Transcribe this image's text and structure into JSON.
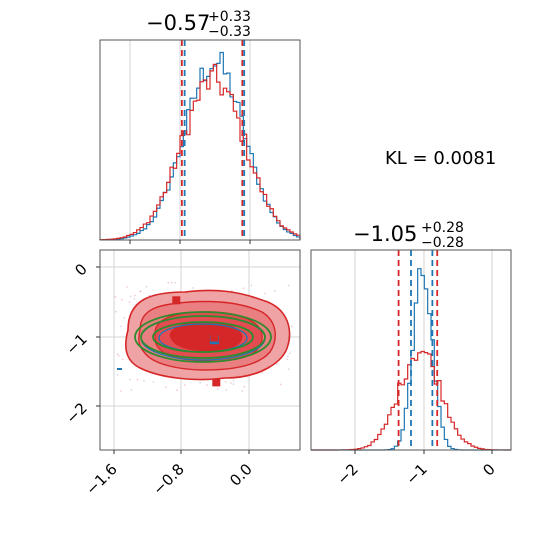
{
  "chart_data": [
    {
      "type": "histogram",
      "panel": "marginal-x",
      "title": {
        "median": "−0.57",
        "plus": "+0.33",
        "minus": "−0.33"
      },
      "xlim": [
        -1.8,
        0.35
      ],
      "colors": {
        "blue": "#1f77b4",
        "red": "#d62728"
      },
      "quantile_lines": {
        "red": [
          -0.92,
          -0.27
        ],
        "blue": [
          -0.89,
          -0.25
        ]
      },
      "series": [
        {
          "color": "blue",
          "shape": "approximately gaussian, peak near -0.57"
        },
        {
          "color": "red",
          "shape": "approximately gaussian, peak near -0.57"
        }
      ]
    },
    {
      "type": "contour",
      "panel": "joint",
      "xlim": [
        -1.8,
        0.35
      ],
      "ylim": [
        -2.6,
        0.3
      ],
      "xticks": [
        "−1.6",
        "−0.8",
        "0.0"
      ],
      "xtick_values": [
        -1.6,
        -0.8,
        0.0
      ],
      "yticks": [
        "0",
        "−1",
        "−2"
      ],
      "ytick_values": [
        0,
        -1,
        -2
      ],
      "markers": [
        {
          "color": "blue",
          "x": -0.57,
          "y": -1.0
        },
        {
          "color": "red",
          "x": -0.98,
          "y": -0.43
        },
        {
          "color": "red",
          "x": -0.55,
          "y": -1.62
        },
        {
          "color": "red",
          "x": -0.57,
          "y": -0.97
        }
      ]
    },
    {
      "type": "histogram",
      "panel": "marginal-y",
      "title": {
        "median": "−1.05",
        "plus": "+0.28",
        "minus": "−0.28"
      },
      "xlim": [
        -2.6,
        0.3
      ],
      "xticks": [
        "−2",
        "−1",
        "0"
      ],
      "xtick_values": [
        -2,
        -1,
        0
      ],
      "quantile_lines": {
        "red": [
          -1.33,
          -0.77
        ],
        "blue": [
          -1.15,
          -0.84
        ]
      },
      "series": [
        {
          "color": "blue",
          "shape": "narrow, peak near -0.98"
        },
        {
          "color": "red",
          "shape": "wider, peak near -1.0"
        }
      ]
    }
  ],
  "annotation": {
    "kl_text": "KL = 0.0081"
  }
}
